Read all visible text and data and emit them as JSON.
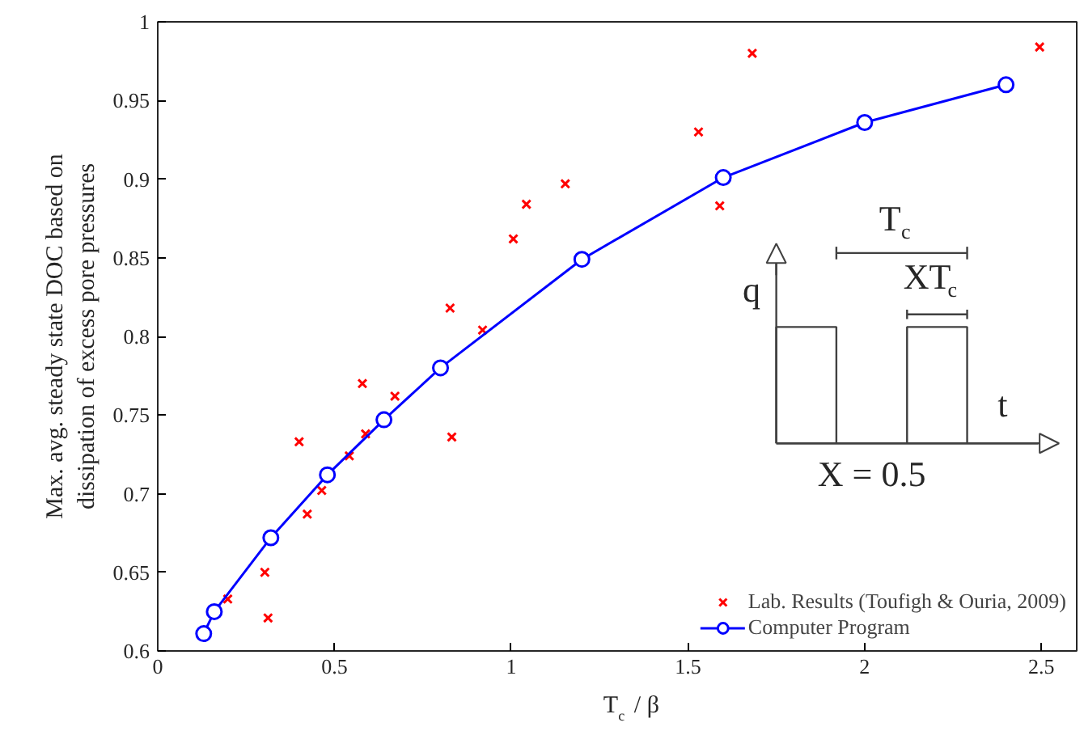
{
  "chart_data": {
    "type": "scatter",
    "xlabel": "T$_{c}$ / β",
    "ylabel": "Max. avg. steady state DOC based on\ndissipation of excess pore pressures",
    "series": [
      {
        "name": "Lab. Results (Toufigh & Ouria, 2009)",
        "marker": "cross",
        "color": "#ff0000",
        "x": [
          0.198,
          0.303,
          0.312,
          0.4,
          0.423,
          0.464,
          0.542,
          0.579,
          0.588,
          0.671,
          0.827,
          0.832,
          0.919,
          1.006,
          1.043,
          1.153,
          1.53,
          1.59,
          1.682,
          2.495
        ],
        "values": [
          0.633,
          0.65,
          0.621,
          0.733,
          0.687,
          0.702,
          0.724,
          0.77,
          0.738,
          0.762,
          0.818,
          0.736,
          0.804,
          0.862,
          0.884,
          0.897,
          0.93,
          0.883,
          0.98,
          0.984
        ]
      },
      {
        "name": "Computer Program",
        "type": "line",
        "marker": "circle",
        "line_style": "solid",
        "color": "#0000ff",
        "x": [
          0.13,
          0.16,
          0.32,
          0.48,
          0.64,
          0.8,
          1.2,
          1.6,
          2.0,
          2.4
        ],
        "values": [
          0.611,
          0.625,
          0.672,
          0.712,
          0.747,
          0.78,
          0.849,
          0.901,
          0.936,
          0.96
        ]
      }
    ],
    "xlim": [
      0,
      2.6
    ],
    "ylim": [
      0.6,
      1
    ],
    "xticks": [
      0,
      0.5,
      1,
      1.5,
      2,
      2.5
    ],
    "yticks": [
      0.6,
      0.65,
      0.7,
      0.75,
      0.8,
      0.85,
      0.9,
      0.95,
      1
    ],
    "grid": false,
    "legend": "bottom right",
    "annotations": [
      "T$_{c}$",
      "XT$_{c}$",
      "q",
      "t",
      "X = 0.5"
    ]
  }
}
